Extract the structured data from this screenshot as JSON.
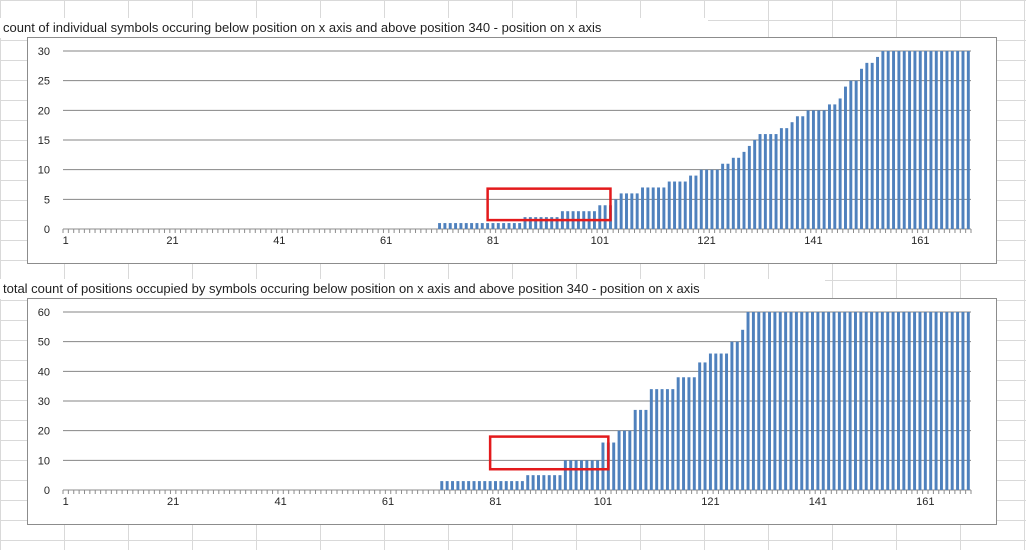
{
  "charts": [
    {
      "title": "count of individual symbols occuring below position on x axis and above position 340 - position on x axis",
      "yticks": [
        "0",
        "5",
        "10",
        "15",
        "20",
        "25",
        "30"
      ],
      "xticks": [
        "1",
        "21",
        "41",
        "61",
        "81",
        "101",
        "121",
        "141",
        "161"
      ]
    },
    {
      "title": "total count of positions occupied by symbols occuring below position on x axis and above position 340 - position on x axis",
      "yticks": [
        "0",
        "10",
        "20",
        "30",
        "40",
        "50",
        "60"
      ],
      "xticks": [
        "1",
        "21",
        "41",
        "61",
        "81",
        "101",
        "121",
        "141",
        "161"
      ]
    }
  ],
  "chart_data": [
    {
      "type": "bar",
      "title": "count of individual symbols occuring below position on x axis and above position 340 - position on x axis",
      "xlabel": "",
      "ylabel": "",
      "x_range": [
        1,
        169
      ],
      "ylim": [
        0,
        30
      ],
      "grid": true,
      "bar_color": "#4f81bd",
      "highlight_color": "#e31a1c",
      "highlight_box": {
        "x": [
          80,
          103
        ],
        "y": [
          1.5,
          6.8
        ]
      },
      "values": [
        0,
        0,
        0,
        0,
        0,
        0,
        0,
        0,
        0,
        0,
        0,
        0,
        0,
        0,
        0,
        0,
        0,
        0,
        0,
        0,
        0,
        0,
        0,
        0,
        0,
        0,
        0,
        0,
        0,
        0,
        0,
        0,
        0,
        0,
        0,
        0,
        0,
        0,
        0,
        0,
        0,
        0,
        0,
        0,
        0,
        0,
        0,
        0,
        0,
        0,
        0,
        0,
        0,
        0,
        0,
        0,
        0,
        0,
        0,
        0,
        0,
        0,
        0,
        0,
        0,
        0,
        0,
        0,
        0,
        0,
        1,
        1,
        1,
        1,
        1,
        1,
        1,
        1,
        1,
        1,
        1,
        1,
        1,
        1,
        1,
        1,
        2,
        2,
        2,
        2,
        2,
        2,
        2,
        3,
        3,
        3,
        3,
        3,
        3,
        3,
        4,
        4,
        4,
        5,
        6,
        6,
        6,
        6,
        7,
        7,
        7,
        7,
        7,
        8,
        8,
        8,
        8,
        9,
        9,
        10,
        10,
        10,
        10,
        11,
        11,
        12,
        12,
        13,
        14,
        15,
        16,
        16,
        16,
        16,
        17,
        17,
        18,
        19,
        19,
        20,
        20,
        20,
        20,
        21,
        21,
        22,
        24,
        25,
        25,
        27,
        28,
        28,
        29,
        30,
        30,
        30,
        30,
        30,
        30,
        30,
        30,
        30,
        30,
        30,
        30,
        30,
        30,
        30,
        30,
        30
      ]
    },
    {
      "type": "bar",
      "title": "total count of positions occupied by symbols occuring below position on x axis and above position 340 - position on x axis",
      "xlabel": "",
      "ylabel": "",
      "x_range": [
        1,
        169
      ],
      "ylim": [
        0,
        60
      ],
      "grid": true,
      "bar_color": "#4f81bd",
      "highlight_color": "#e31a1c",
      "highlight_box": {
        "x": [
          80,
          102
        ],
        "y": [
          7,
          18
        ]
      },
      "values": [
        0,
        0,
        0,
        0,
        0,
        0,
        0,
        0,
        0,
        0,
        0,
        0,
        0,
        0,
        0,
        0,
        0,
        0,
        0,
        0,
        0,
        0,
        0,
        0,
        0,
        0,
        0,
        0,
        0,
        0,
        0,
        0,
        0,
        0,
        0,
        0,
        0,
        0,
        0,
        0,
        0,
        0,
        0,
        0,
        0,
        0,
        0,
        0,
        0,
        0,
        0,
        0,
        0,
        0,
        0,
        0,
        0,
        0,
        0,
        0,
        0,
        0,
        0,
        0,
        0,
        0,
        0,
        0,
        0,
        0,
        3,
        3,
        3,
        3,
        3,
        3,
        3,
        3,
        3,
        3,
        3,
        3,
        3,
        3,
        3,
        3,
        5,
        5,
        5,
        5,
        5,
        5,
        5,
        10,
        10,
        10,
        10,
        10,
        10,
        10,
        16,
        16,
        16,
        20,
        20,
        20,
        27,
        27,
        27,
        34,
        34,
        34,
        34,
        34,
        38,
        38,
        38,
        38,
        43,
        43,
        46,
        46,
        46,
        46,
        50,
        50,
        54,
        60,
        60,
        60,
        60,
        60,
        60,
        60,
        60,
        60,
        60,
        60,
        60,
        60,
        60,
        60,
        60,
        60,
        60,
        60,
        60,
        60,
        60,
        60,
        60,
        60,
        60,
        60,
        60,
        60,
        60,
        60,
        60,
        60,
        60,
        60,
        60,
        60,
        60,
        60,
        60,
        60,
        60
      ]
    }
  ]
}
